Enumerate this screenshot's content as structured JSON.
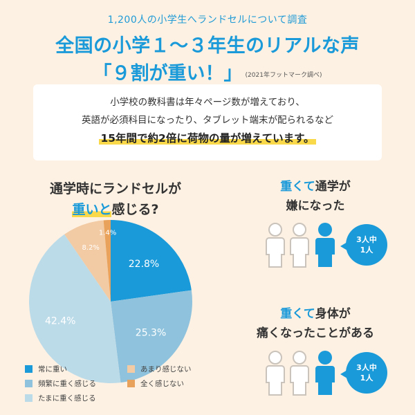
{
  "header": {
    "subtitle": "1,200人の小学生へランドセルについて調査",
    "title": "全国の小学１〜３年生のリアルな声",
    "title2": "「９割が重い！」",
    "source": "(2021年フットマーク調べ)"
  },
  "info": {
    "line1": "小学校の教科書は年々ページ数が増えており、",
    "line2": "英語が必須科目になったり、タブレット端末が配られるなど",
    "line3": "15年間で約2倍に荷物の量が増えています。"
  },
  "question": {
    "line1": "通学時にランドセルが",
    "line2_blue": "重いと",
    "line2_rest": "感じる?"
  },
  "chart_data": {
    "type": "pie",
    "title": "通学時にランドセルが重いと感じる?",
    "slices": [
      {
        "name": "常に重い",
        "value": 22.8,
        "label": "22.8%",
        "color": "#1a9ad9"
      },
      {
        "name": "頻繁に重く感じる",
        "value": 25.3,
        "label": "25.3%",
        "color": "#8fc3dd"
      },
      {
        "name": "たまに重く感じる",
        "value": 42.4,
        "label": "42.4%",
        "color": "#bcdbe9"
      },
      {
        "name": "あまり感じない",
        "value": 8.2,
        "label": "8.2%",
        "color": "#f2caa3"
      },
      {
        "name": "全く感じない",
        "value": 1.4,
        "label": "1.4%",
        "color": "#e9a25b"
      }
    ],
    "start_angle_deg": 0,
    "direction": "clockwise",
    "legend_placement": "bottom"
  },
  "legend": [
    {
      "label": "常に重い",
      "color": "#1a9ad9"
    },
    {
      "label": "頻繁に重く感じる",
      "color": "#8fc3dd"
    },
    {
      "label": "たまに重く感じる",
      "color": "#bcdbe9"
    },
    {
      "label": "あまり感じない",
      "color": "#f2caa3"
    },
    {
      "label": "全く感じない",
      "color": "#e9a25b"
    }
  ],
  "stat1": {
    "title_blue": "重くて",
    "title_rest1": "通学が",
    "title_line2": "嫌になった",
    "bubble_line1": "3人中",
    "bubble_line2": "1人"
  },
  "stat2": {
    "title_blue": "重くて",
    "title_rest1": "身体が",
    "title_line2": "痛くなったことがある",
    "bubble_line1": "3人中",
    "bubble_line2": "1人"
  },
  "colors": {
    "background": "#fdf1e3",
    "accent": "#1a9ad9",
    "highlight": "#f9d94a",
    "person_outline": "#c9c3bb"
  },
  "icons": [
    "person-outline-icon",
    "person-filled-icon"
  ]
}
